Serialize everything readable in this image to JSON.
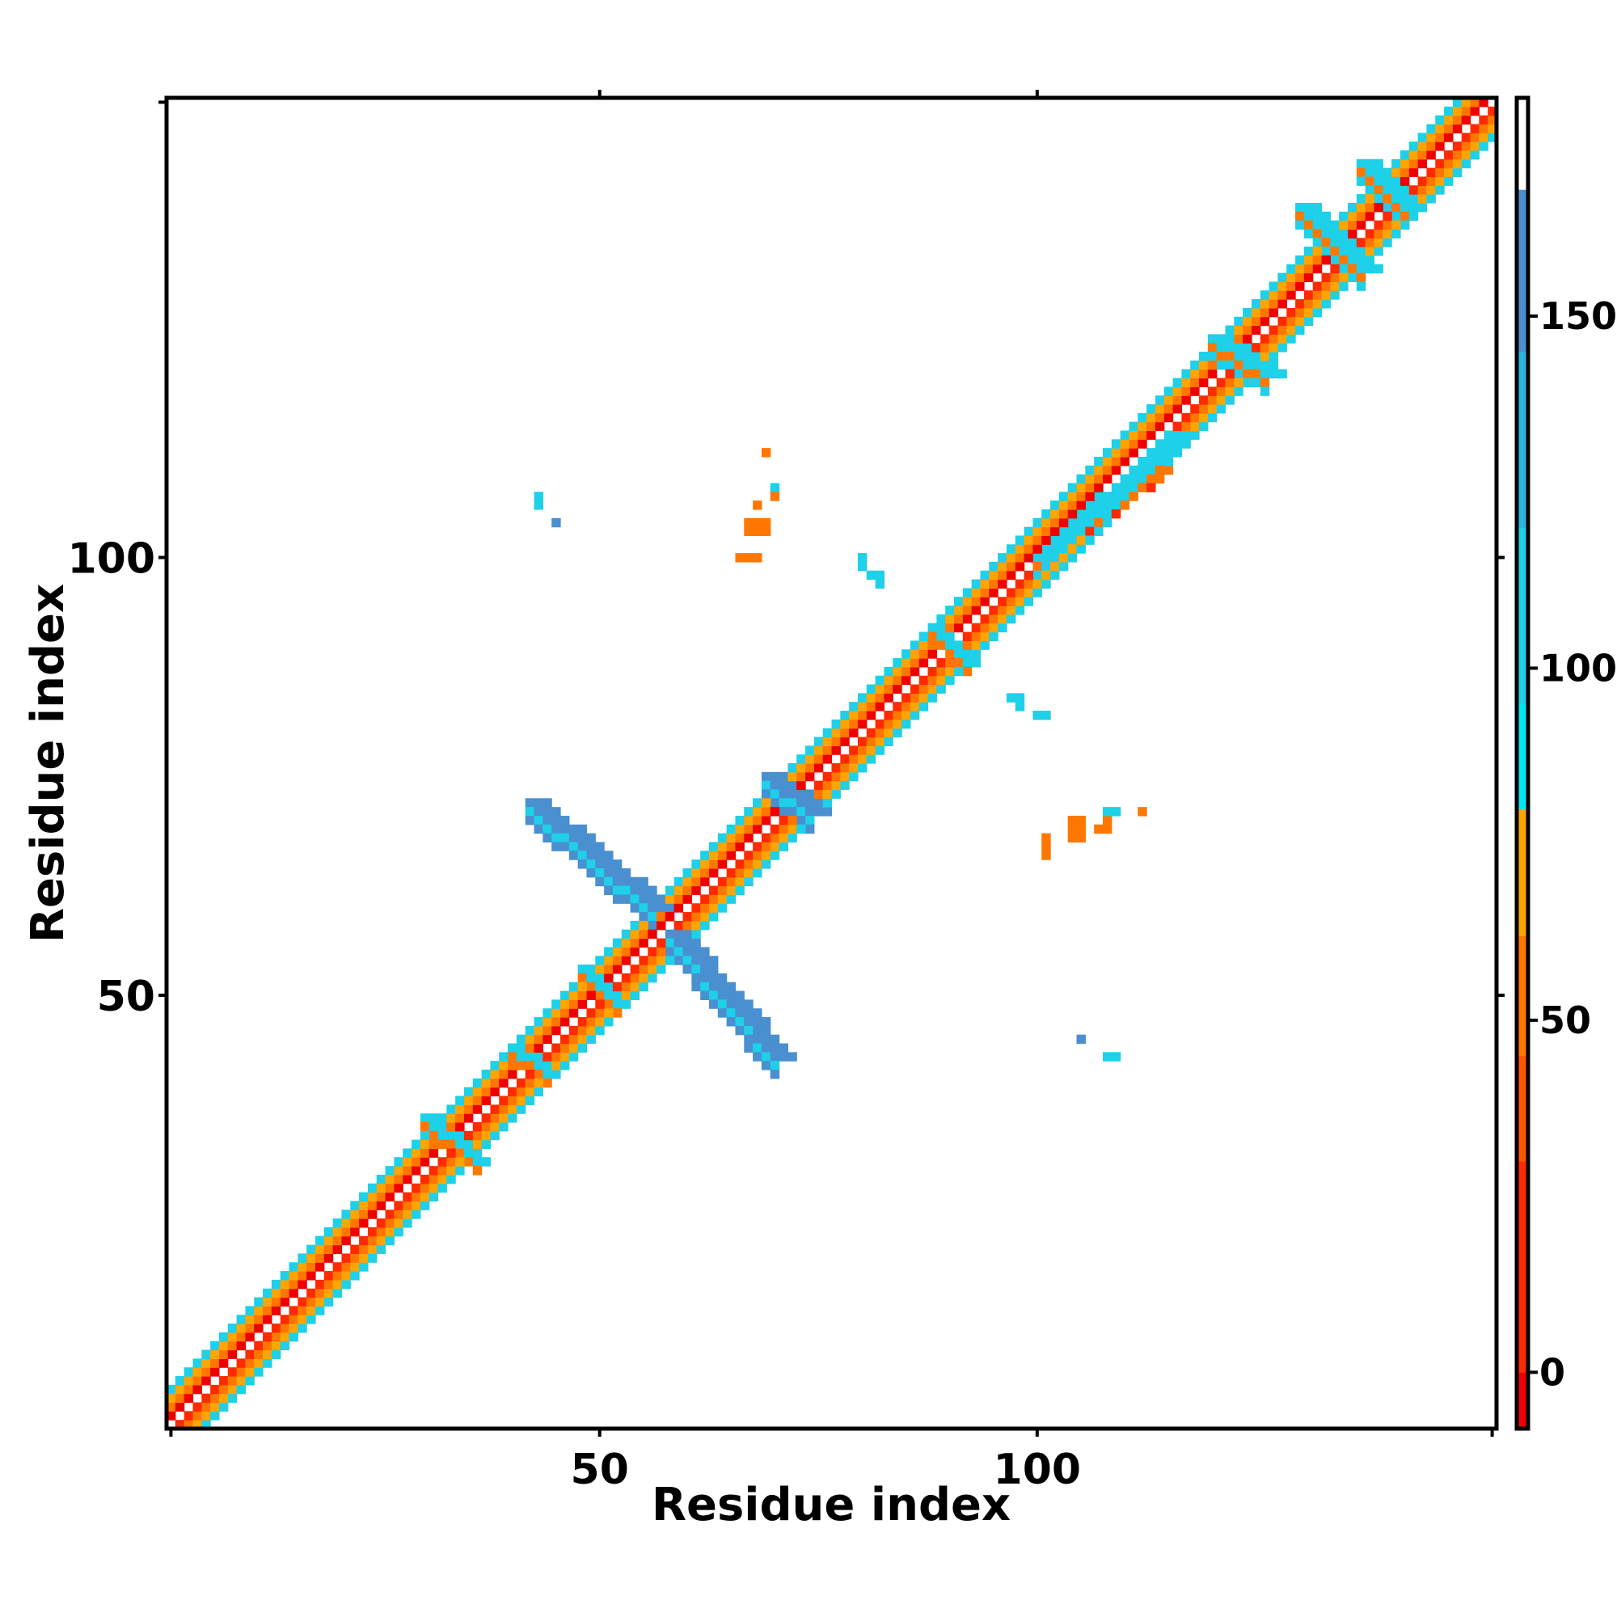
{
  "chart_data": {
    "type": "heatmap",
    "title": "",
    "xlabel": "Residue index",
    "ylabel": "Residue index",
    "xlim": [
      1,
      152
    ],
    "ylim": [
      1,
      152
    ],
    "x_ticks": [
      50,
      100
    ],
    "y_ticks": [
      50,
      100
    ],
    "grid": false,
    "colorbar": {
      "range": [
        -8,
        181
      ],
      "ticks": [
        0,
        50,
        100,
        150
      ],
      "colors": [
        {
          "from": -8,
          "to": 0,
          "color": "#ee0000"
        },
        {
          "from": 0,
          "to": 30,
          "color": "#ff2a00"
        },
        {
          "from": 30,
          "to": 45,
          "color": "#ff5500"
        },
        {
          "from": 45,
          "to": 62,
          "color": "#ff7700"
        },
        {
          "from": 62,
          "to": 80,
          "color": "#ffa500"
        },
        {
          "from": 80,
          "to": 95,
          "color": "#00e5ee"
        },
        {
          "from": 95,
          "to": 120,
          "color": "#1ed0e8"
        },
        {
          "from": 120,
          "to": 145,
          "color": "#2ab4e0"
        },
        {
          "from": 145,
          "to": 168,
          "color": "#4a8fd0"
        },
        {
          "from": 168,
          "to": 181,
          "color": "#ffffff"
        }
      ]
    },
    "diagonal_band": {
      "start": 1,
      "end": 152
    },
    "regions": [
      {
        "x1": 42,
        "y1": 72,
        "x2": 56,
        "y2": 60,
        "width": 3,
        "value": 158
      },
      {
        "x1": 58,
        "y1": 57,
        "x2": 70,
        "y2": 43,
        "width": 3,
        "value": 158
      },
      {
        "x1": 69,
        "y1": 75,
        "x2": 74,
        "y2": 71,
        "width": 3,
        "value": 155
      },
      {
        "x1": 100,
        "y1": 100,
        "x2": 115,
        "y2": 114,
        "width": 3,
        "value": 108
      },
      {
        "x1": 120,
        "y1": 125,
        "x2": 126,
        "y2": 121,
        "width": 3,
        "value": 108
      },
      {
        "x1": 130,
        "y1": 140,
        "x2": 137,
        "y2": 133,
        "width": 3,
        "value": 108
      },
      {
        "x1": 137,
        "y1": 145,
        "x2": 142,
        "y2": 140,
        "width": 3,
        "value": 108
      },
      {
        "x1": 106,
        "y1": 104,
        "x2": 114,
        "y2": 110,
        "width": 2,
        "value": 55
      },
      {
        "x1": 88,
        "y1": 92,
        "x2": 92,
        "y2": 88,
        "width": 2,
        "value": 108
      },
      {
        "x1": 48,
        "y1": 53,
        "x2": 52,
        "y2": 49,
        "width": 2,
        "value": 108
      },
      {
        "x1": 40,
        "y1": 44,
        "x2": 44,
        "y2": 41,
        "width": 2,
        "value": 108
      },
      {
        "x1": 30,
        "y1": 36,
        "x2": 36,
        "y2": 31,
        "width": 2,
        "value": 108
      }
    ],
    "points": [
      {
        "x": 43,
        "y": 107,
        "value": 108
      },
      {
        "x": 43,
        "y": 106,
        "value": 108
      },
      {
        "x": 45,
        "y": 104,
        "value": 155
      },
      {
        "x": 69,
        "y": 112,
        "value": 45
      },
      {
        "x": 70,
        "y": 108,
        "value": 108
      },
      {
        "x": 68,
        "y": 106,
        "value": 45
      },
      {
        "x": 70,
        "y": 107,
        "value": 45
      },
      {
        "x": 67,
        "y": 104,
        "value": 60
      },
      {
        "x": 68,
        "y": 104,
        "value": 55
      },
      {
        "x": 69,
        "y": 104,
        "value": 45
      },
      {
        "x": 67,
        "y": 103,
        "value": 45
      },
      {
        "x": 68,
        "y": 103,
        "value": 45
      },
      {
        "x": 69,
        "y": 103,
        "value": 45
      },
      {
        "x": 66,
        "y": 100,
        "value": 60
      },
      {
        "x": 67,
        "y": 100,
        "value": 60
      },
      {
        "x": 68,
        "y": 100,
        "value": 60
      },
      {
        "x": 80,
        "y": 100,
        "value": 108
      },
      {
        "x": 80,
        "y": 99,
        "value": 108
      },
      {
        "x": 81,
        "y": 98,
        "value": 108
      },
      {
        "x": 82,
        "y": 98,
        "value": 108
      },
      {
        "x": 82,
        "y": 97,
        "value": 108
      },
      {
        "x": 97,
        "y": 84,
        "value": 108
      },
      {
        "x": 98,
        "y": 84,
        "value": 108
      },
      {
        "x": 98,
        "y": 83,
        "value": 108
      },
      {
        "x": 100,
        "y": 82,
        "value": 108
      },
      {
        "x": 101,
        "y": 82,
        "value": 108
      },
      {
        "x": 101,
        "y": 68,
        "value": 60
      },
      {
        "x": 101,
        "y": 67,
        "value": 60
      },
      {
        "x": 101,
        "y": 66,
        "value": 60
      },
      {
        "x": 104,
        "y": 70,
        "value": 45
      },
      {
        "x": 105,
        "y": 70,
        "value": 45
      },
      {
        "x": 104,
        "y": 69,
        "value": 45
      },
      {
        "x": 105,
        "y": 69,
        "value": 45
      },
      {
        "x": 104,
        "y": 68,
        "value": 45
      },
      {
        "x": 105,
        "y": 68,
        "value": 45
      },
      {
        "x": 107,
        "y": 69,
        "value": 45
      },
      {
        "x": 108,
        "y": 69,
        "value": 45
      },
      {
        "x": 108,
        "y": 70,
        "value": 45
      },
      {
        "x": 108,
        "y": 71,
        "value": 108
      },
      {
        "x": 109,
        "y": 71,
        "value": 108
      },
      {
        "x": 112,
        "y": 71,
        "value": 45
      },
      {
        "x": 105,
        "y": 45,
        "value": 155
      },
      {
        "x": 108,
        "y": 43,
        "value": 108
      },
      {
        "x": 109,
        "y": 43,
        "value": 108
      }
    ]
  }
}
